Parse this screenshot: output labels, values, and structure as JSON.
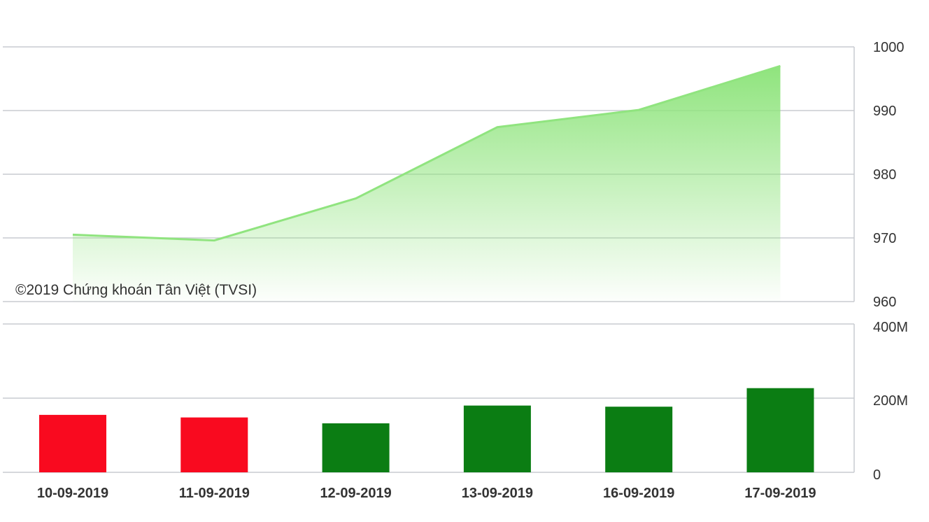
{
  "credit": "©2019 Chứng khoán Tân Việt (TVSI)",
  "colors": {
    "price_line": "#90e47f",
    "volume_up": "#0b7d13",
    "volume_down": "#f90a1f"
  },
  "chart_data": [
    {
      "type": "area",
      "categories": [
        "10-09-2019",
        "11-09-2019",
        "12-09-2019",
        "13-09-2019",
        "16-09-2019",
        "17-09-2019"
      ],
      "values": [
        970.5,
        969.6,
        976.2,
        987.4,
        990.1,
        997.0
      ],
      "ylim": [
        960,
        1000
      ],
      "yticks": [
        "960",
        "970",
        "980",
        "990",
        "1000"
      ],
      "grid": true,
      "axis_position": "right"
    },
    {
      "type": "bar",
      "categories": [
        "10-09-2019",
        "11-09-2019",
        "12-09-2019",
        "13-09-2019",
        "16-09-2019",
        "17-09-2019"
      ],
      "values": [
        155000000,
        148000000,
        132000000,
        180000000,
        177000000,
        227000000
      ],
      "directions": [
        "down",
        "down",
        "up",
        "up",
        "up",
        "up"
      ],
      "ylim": [
        0,
        400000000
      ],
      "yticks": [
        "0",
        "200M",
        "400M"
      ],
      "grid": true,
      "axis_position": "right"
    }
  ]
}
